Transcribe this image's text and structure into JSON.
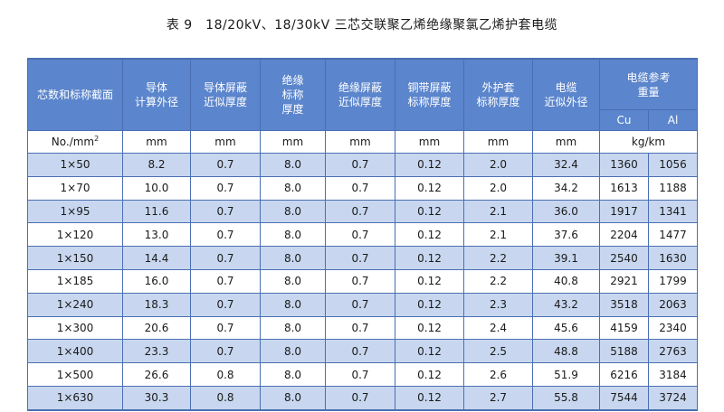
{
  "title": "表 9　18/20kV、18/30kV 三芯交联聚乙烯绝缘聚氯乙烯护套电缆",
  "headers": {
    "section": "芯数和标称截面",
    "conductor_dia": [
      "导体",
      "计算外径"
    ],
    "cond_screen": [
      "导体屏蔽",
      "近似厚度"
    ],
    "insulation": [
      "绝缘",
      "标称",
      "厚度"
    ],
    "ins_screen": [
      "绝缘屏蔽",
      "近似厚度"
    ],
    "cu_tape": [
      "铜带屏蔽",
      "标称厚度"
    ],
    "sheath": [
      "外护套",
      "标称厚度"
    ],
    "cable_dia": [
      "电缆",
      "近似外径"
    ],
    "weight": [
      "电缆参考",
      "重量"
    ],
    "cu": "Cu",
    "al": "Al"
  },
  "units": {
    "section": "No./mm",
    "section_sup": "2",
    "conductor_dia": "mm",
    "cond_screen": "mm",
    "insulation": "mm",
    "ins_screen": "mm",
    "cu_tape": "mm",
    "sheath": "mm",
    "cable_dia": "mm",
    "weight": "kg/km"
  },
  "rows": [
    {
      "section": "1×50",
      "cond": "8.2",
      "cscr": "0.7",
      "ins": "8.0",
      "iscr": "0.7",
      "tape": "0.12",
      "sheath": "2.0",
      "dia": "32.4",
      "cu": "1360",
      "al": "1056"
    },
    {
      "section": "1×70",
      "cond": "10.0",
      "cscr": "0.7",
      "ins": "8.0",
      "iscr": "0.7",
      "tape": "0.12",
      "sheath": "2.0",
      "dia": "34.2",
      "cu": "1613",
      "al": "1188"
    },
    {
      "section": "1×95",
      "cond": "11.6",
      "cscr": "0.7",
      "ins": "8.0",
      "iscr": "0.7",
      "tape": "0.12",
      "sheath": "2.1",
      "dia": "36.0",
      "cu": "1917",
      "al": "1341"
    },
    {
      "section": "1×120",
      "cond": "13.0",
      "cscr": "0.7",
      "ins": "8.0",
      "iscr": "0.7",
      "tape": "0.12",
      "sheath": "2.1",
      "dia": "37.6",
      "cu": "2204",
      "al": "1477"
    },
    {
      "section": "1×150",
      "cond": "14.4",
      "cscr": "0.7",
      "ins": "8.0",
      "iscr": "0.7",
      "tape": "0.12",
      "sheath": "2.2",
      "dia": "39.1",
      "cu": "2540",
      "al": "1630"
    },
    {
      "section": "1×185",
      "cond": "16.0",
      "cscr": "0.7",
      "ins": "8.0",
      "iscr": "0.7",
      "tape": "0.12",
      "sheath": "2.2",
      "dia": "40.8",
      "cu": "2921",
      "al": "1799"
    },
    {
      "section": "1×240",
      "cond": "18.3",
      "cscr": "0.7",
      "ins": "8.0",
      "iscr": "0.7",
      "tape": "0.12",
      "sheath": "2.3",
      "dia": "43.2",
      "cu": "3518",
      "al": "2063"
    },
    {
      "section": "1×300",
      "cond": "20.6",
      "cscr": "0.7",
      "ins": "8.0",
      "iscr": "0.7",
      "tape": "0.12",
      "sheath": "2.4",
      "dia": "45.6",
      "cu": "4159",
      "al": "2340"
    },
    {
      "section": "1×400",
      "cond": "23.3",
      "cscr": "0.7",
      "ins": "8.0",
      "iscr": "0.7",
      "tape": "0.12",
      "sheath": "2.5",
      "dia": "48.8",
      "cu": "5188",
      "al": "2763"
    },
    {
      "section": "1×500",
      "cond": "26.6",
      "cscr": "0.8",
      "ins": "8.0",
      "iscr": "0.7",
      "tape": "0.12",
      "sheath": "2.6",
      "dia": "51.9",
      "cu": "6216",
      "al": "3184"
    },
    {
      "section": "1×630",
      "cond": "30.3",
      "cscr": "0.8",
      "ins": "8.0",
      "iscr": "0.7",
      "tape": "0.12",
      "sheath": "2.7",
      "dia": "55.8",
      "cu": "7544",
      "al": "3724"
    }
  ]
}
